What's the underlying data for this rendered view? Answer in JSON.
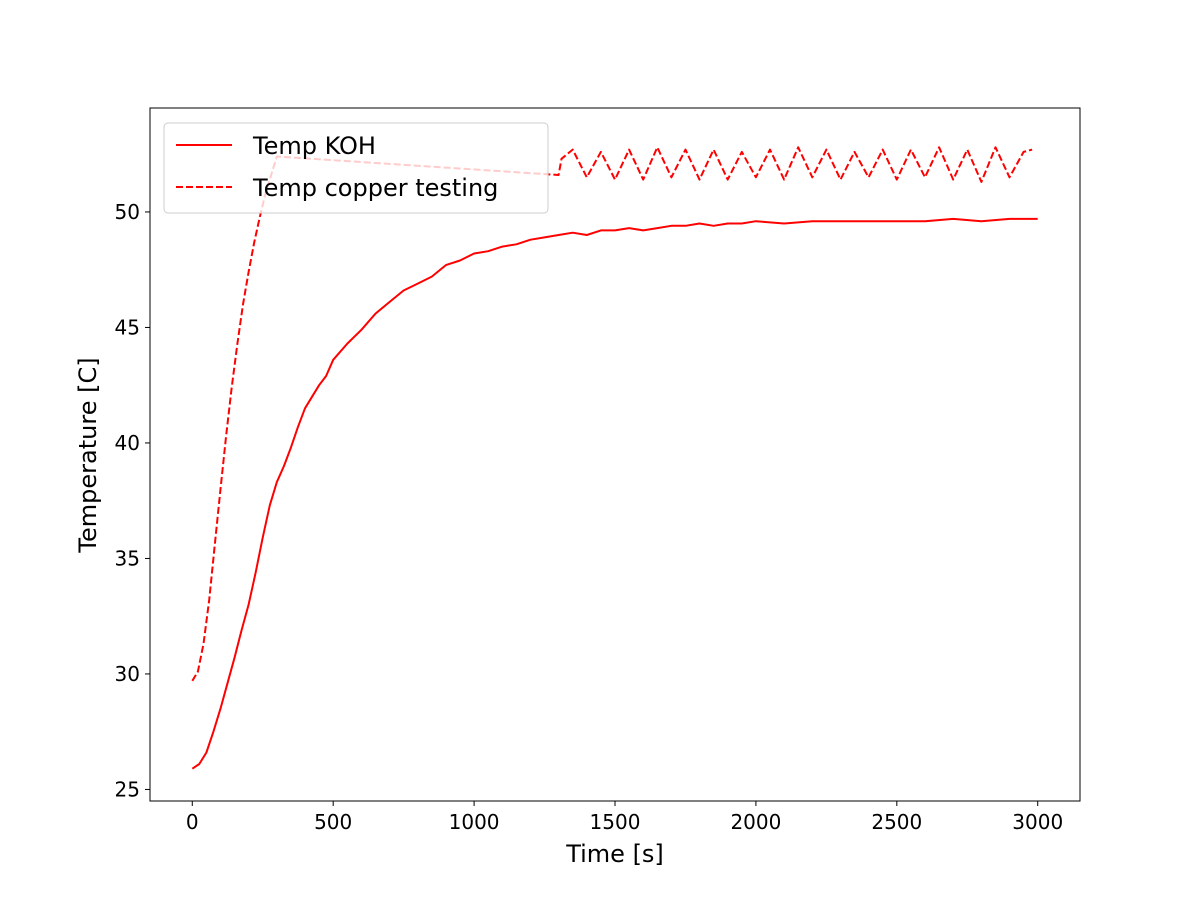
{
  "chart_data": {
    "type": "line",
    "title": "",
    "xlabel": "Time [s]",
    "ylabel": "Temperature [C]",
    "xlim": [
      -150,
      3150
    ],
    "ylim": [
      24.5,
      54.5
    ],
    "xticks": [
      0,
      500,
      1000,
      1500,
      2000,
      2500,
      3000
    ],
    "yticks": [
      25,
      30,
      35,
      40,
      45,
      50
    ],
    "grid": false,
    "legend": {
      "position": "top-left"
    },
    "series": [
      {
        "name": "Temp KOH",
        "color": "#ff0000",
        "style": "solid",
        "x": [
          0,
          25,
          50,
          75,
          100,
          125,
          150,
          175,
          200,
          225,
          250,
          275,
          300,
          325,
          350,
          375,
          400,
          425,
          450,
          475,
          500,
          550,
          600,
          650,
          700,
          750,
          800,
          850,
          900,
          950,
          1000,
          1050,
          1100,
          1150,
          1200,
          1250,
          1300,
          1350,
          1400,
          1450,
          1500,
          1550,
          1600,
          1650,
          1700,
          1750,
          1800,
          1850,
          1900,
          1950,
          2000,
          2100,
          2200,
          2300,
          2400,
          2500,
          2600,
          2700,
          2800,
          2900,
          3000
        ],
        "y": [
          25.9,
          26.1,
          26.6,
          27.5,
          28.5,
          29.6,
          30.7,
          31.9,
          33.0,
          34.4,
          35.9,
          37.3,
          38.3,
          39.0,
          39.8,
          40.7,
          41.5,
          42.0,
          42.5,
          42.9,
          43.6,
          44.3,
          44.9,
          45.6,
          46.1,
          46.6,
          46.9,
          47.2,
          47.7,
          47.9,
          48.2,
          48.3,
          48.5,
          48.6,
          48.8,
          48.9,
          49.0,
          49.1,
          49.0,
          49.2,
          49.2,
          49.3,
          49.2,
          49.3,
          49.4,
          49.4,
          49.5,
          49.4,
          49.5,
          49.5,
          49.6,
          49.5,
          49.6,
          49.6,
          49.6,
          49.6,
          49.6,
          49.7,
          49.6,
          49.7,
          49.7
        ]
      },
      {
        "name": "Temp copper testing",
        "color": "#ff0000",
        "style": "dashed",
        "x": [
          0,
          20,
          40,
          60,
          80,
          100,
          120,
          140,
          160,
          180,
          200,
          220,
          240,
          260,
          280,
          300,
          1300,
          1310,
          1350,
          1400,
          1450,
          1500,
          1550,
          1600,
          1650,
          1700,
          1750,
          1800,
          1850,
          1900,
          1950,
          2000,
          2050,
          2100,
          2150,
          2200,
          2250,
          2300,
          2350,
          2400,
          2450,
          2500,
          2550,
          2600,
          2650,
          2700,
          2750,
          2800,
          2850,
          2900,
          2950,
          2980
        ],
        "y": [
          29.7,
          30.1,
          31.3,
          33.2,
          35.6,
          38.0,
          40.3,
          42.4,
          44.3,
          46.0,
          47.4,
          48.7,
          49.8,
          50.8,
          51.6,
          52.4,
          51.6,
          52.3,
          52.7,
          51.5,
          52.6,
          51.4,
          52.7,
          51.4,
          52.8,
          51.5,
          52.7,
          51.4,
          52.7,
          51.4,
          52.6,
          51.5,
          52.7,
          51.4,
          52.8,
          51.5,
          52.7,
          51.4,
          52.6,
          51.5,
          52.7,
          51.4,
          52.7,
          51.5,
          52.8,
          51.4,
          52.7,
          51.3,
          52.8,
          51.5,
          52.6,
          52.7
        ]
      }
    ]
  }
}
